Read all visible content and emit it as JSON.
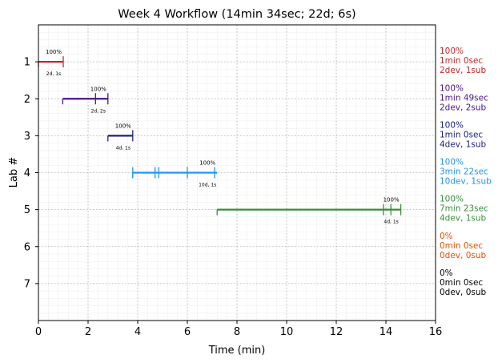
{
  "chart_data": {
    "type": "timeline",
    "title": "Week 4 Workflow (14min 34sec; 22d; 6s)",
    "xlabel": "Time (min)",
    "ylabel": "Lab #",
    "xlim": [
      0,
      16
    ],
    "ylim": [
      8,
      0
    ],
    "xticks": [
      "0",
      "2",
      "4",
      "6",
      "8",
      "10",
      "12",
      "14",
      "16"
    ],
    "yticks": [
      "1",
      "2",
      "3",
      "4",
      "5",
      "6",
      "7"
    ],
    "grid": true,
    "labs": [
      {
        "lab": 1,
        "start": 0.0,
        "end": 1.0,
        "ticks": [
          1.0
        ],
        "pct_label": "100%",
        "count_label": "2d, 1s",
        "right_labels": [
          "100%",
          "1min 0sec",
          "2dev, 1sub"
        ],
        "color": "#c62828"
      },
      {
        "lab": 2,
        "start": 0.98,
        "end": 2.8,
        "ticks": [
          2.3,
          2.8
        ],
        "pct_label": "100%",
        "count_label": "2d, 2s",
        "right_labels": [
          "100%",
          "1min 49sec",
          "2dev, 2sub"
        ],
        "color": "#4a148c"
      },
      {
        "lab": 3,
        "start": 2.8,
        "end": 3.8,
        "ticks": [
          3.8
        ],
        "pct_label": "100%",
        "count_label": "4d, 1s",
        "right_labels": [
          "100%",
          "1min 0sec",
          "4dev, 1sub"
        ],
        "color": "#1a237e"
      },
      {
        "lab": 4,
        "start": 3.8,
        "end": 7.2,
        "ticks": [
          3.8,
          4.7,
          4.85,
          6.0,
          7.1
        ],
        "pct_label": "100%",
        "count_label": "10d, 1s",
        "right_labels": [
          "100%",
          "3min 22sec",
          "10dev, 1sub"
        ],
        "color": "#2196f3"
      },
      {
        "lab": 5,
        "start": 7.2,
        "end": 14.6,
        "ticks": [
          13.9,
          14.2,
          14.6
        ],
        "pct_label": "100%",
        "count_label": "4d, 1s",
        "right_labels": [
          "100%",
          "7min 23sec",
          "4dev, 1sub"
        ],
        "color": "#388e3c"
      },
      {
        "lab": 6,
        "start": null,
        "end": null,
        "ticks": [],
        "pct_label": "",
        "count_label": "",
        "right_labels": [
          "0%",
          "0min 0sec",
          "0dev, 0sub"
        ],
        "color": "#e65100"
      },
      {
        "lab": 7,
        "start": null,
        "end": null,
        "ticks": [],
        "pct_label": "",
        "count_label": "",
        "right_labels": [
          "0%",
          "0min 0sec",
          "0dev, 0sub"
        ],
        "color": "#000000"
      }
    ]
  }
}
